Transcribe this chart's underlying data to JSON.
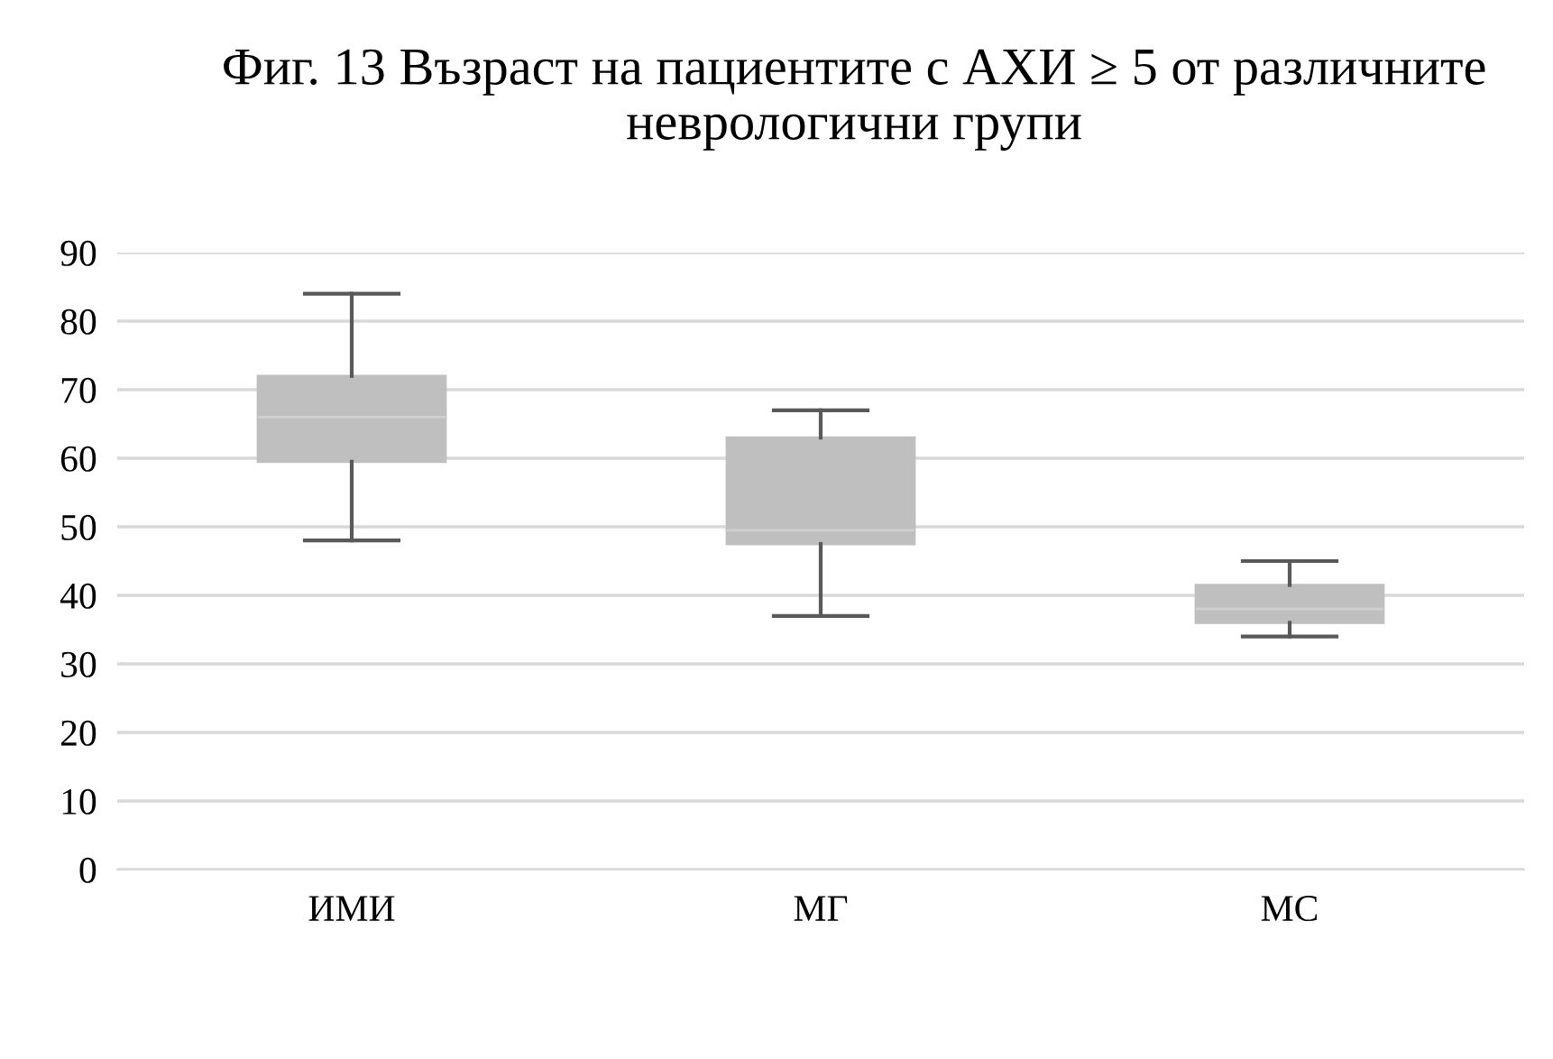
{
  "chart_data": {
    "type": "box",
    "title": "Фиг. 13 Възраст на пациентите с АХИ ≥ 5 от различните неврологични групи",
    "categories": [
      "ИМИ",
      "МГ",
      "МС"
    ],
    "boxes": [
      {
        "low": 48,
        "q1": 59.5,
        "median": 66,
        "q3": 72,
        "high": 84
      },
      {
        "low": 37,
        "q1": 47.5,
        "median": 49.5,
        "q3": 63,
        "high": 67
      },
      {
        "low": 34,
        "q1": 36,
        "median": 38,
        "q3": 41.5,
        "high": 45
      }
    ],
    "color": "#bfbfbf",
    "ylim": [
      0,
      90
    ],
    "yticks": [
      0,
      10,
      20,
      30,
      40,
      50,
      60,
      70,
      80,
      90
    ],
    "grid": "y"
  }
}
